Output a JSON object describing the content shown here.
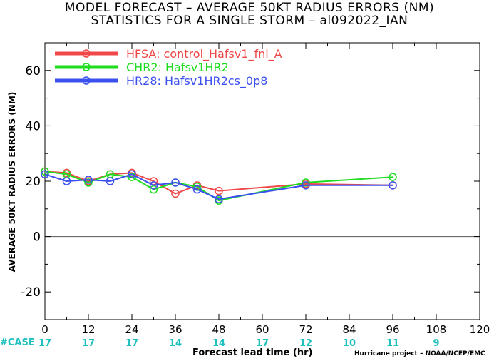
{
  "title_line1": "MODEL FORECAST – AVERAGE 50KT RADIUS ERRORS (NM)",
  "title_line2": "STATISTICS FOR A SINGLE STORM – al092022_IAN",
  "case_label": "#CASE",
  "credit": "Hurricane project – NOAA/NCEP/EMC",
  "colors": {
    "HFSA": "#f04848",
    "CHR2": "#1edc1e",
    "HR28": "#3c50f0",
    "zero_line": "#555555",
    "cases": "#1fc0c0"
  },
  "chart_data": {
    "type": "line",
    "title": "MODEL FORECAST – AVERAGE 50KT RADIUS ERRORS (NM)",
    "subtitle": "STATISTICS FOR A SINGLE STORM – al092022_IAN",
    "xlabel": "Forecast lead time (hr)",
    "ylabel": "AVERAGE 50KT RADIUS ERRORS (NM)",
    "xlim": [
      0,
      120
    ],
    "ylim": [
      -30,
      70
    ],
    "xticks": [
      0,
      12,
      24,
      36,
      48,
      60,
      72,
      84,
      96,
      108,
      120
    ],
    "yticks": [
      -20,
      0,
      20,
      40,
      60
    ],
    "grid": false,
    "legend_position": "top-left",
    "series": [
      {
        "name": "HFSA: control_Hafsv1_fnl_A",
        "color": "#f04848",
        "x": [
          0,
          6,
          12,
          18,
          24,
          30,
          36,
          42,
          48,
          72,
          96
        ],
        "y": [
          23.5,
          23.0,
          20.0,
          22.5,
          23.0,
          20.0,
          15.5,
          18.5,
          16.5,
          19.0,
          18.5
        ]
      },
      {
        "name": "CHR2: Hafsv1HR2",
        "color": "#1edc1e",
        "x": [
          0,
          6,
          12,
          18,
          24,
          30,
          36,
          42,
          48,
          72,
          96
        ],
        "y": [
          23.5,
          22.5,
          19.5,
          22.5,
          21.5,
          17.0,
          19.5,
          18.0,
          13.0,
          19.5,
          21.5
        ]
      },
      {
        "name": "HR28: Hafsv1HR2cs_0p8",
        "color": "#3c50f0",
        "x": [
          0,
          6,
          12,
          18,
          24,
          30,
          36,
          42,
          48,
          72,
          96
        ],
        "y": [
          22.5,
          20.0,
          20.5,
          20.0,
          22.5,
          18.5,
          19.5,
          17.0,
          13.5,
          18.5,
          18.5
        ]
      }
    ],
    "cases": {
      "x": [
        0,
        12,
        24,
        36,
        48,
        60,
        72,
        84,
        96,
        108
      ],
      "values": [
        "17",
        "17",
        "17",
        "14",
        "14",
        "17",
        "12",
        "10",
        "11",
        "9"
      ]
    }
  }
}
